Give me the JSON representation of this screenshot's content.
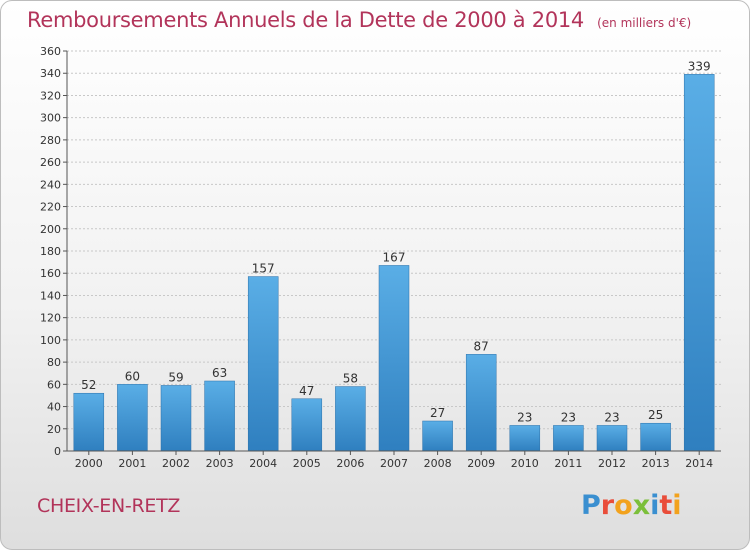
{
  "chart_data": {
    "type": "bar",
    "title": "Remboursements Annuels de la Dette de 2000 à 2014",
    "unit_label": "(en milliers d'€)",
    "categories": [
      "2000",
      "2001",
      "2002",
      "2003",
      "2004",
      "2005",
      "2006",
      "2007",
      "2008",
      "2009",
      "2010",
      "2011",
      "2012",
      "2013",
      "2014"
    ],
    "values": [
      52,
      60,
      59,
      63,
      157,
      47,
      58,
      167,
      27,
      87,
      23,
      23,
      23,
      25,
      339
    ],
    "ylim": [
      0,
      360
    ],
    "yticks": [
      0,
      20,
      40,
      60,
      80,
      100,
      120,
      140,
      160,
      180,
      200,
      220,
      240,
      260,
      280,
      300,
      320,
      340,
      360
    ],
    "grid": true,
    "bar_color": "#3b8fd1",
    "bar_color_light": "#5aaee6"
  },
  "footer": {
    "location": "CHEIX-EN-RETZ",
    "logo": "Proxiti"
  }
}
